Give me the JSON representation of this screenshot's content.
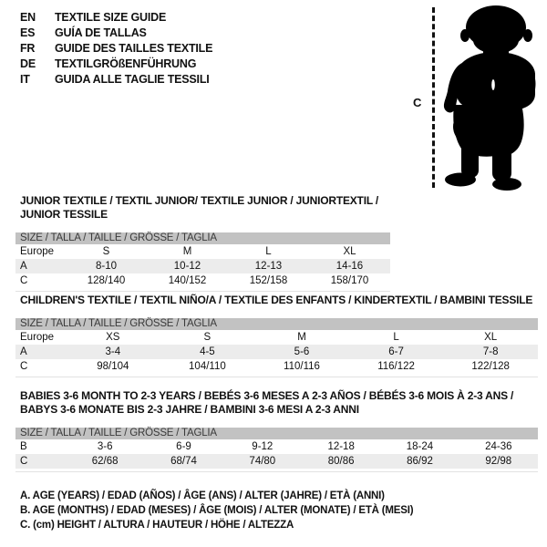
{
  "colors": {
    "bar_bg": "#c2c2c2",
    "bar_text": "#3a3a3a",
    "row_shaded_bg": "#ececec",
    "text": "#111111"
  },
  "language_header": {
    "items": [
      {
        "code": "EN",
        "title": "TEXTILE SIZE GUIDE"
      },
      {
        "code": "ES",
        "title": "GUÍA DE TALLAS"
      },
      {
        "code": "FR",
        "title": "GUIDE DES TAILLES TEXTILE"
      },
      {
        "code": "DE",
        "title": "TEXTILGRÖßENFÜHRUNG"
      },
      {
        "code": "IT",
        "title": "GUIDA ALLE TAGLIE TESSILI"
      }
    ]
  },
  "figure": {
    "icon": "toddler-silhouette",
    "measure_label": "C"
  },
  "tables": [
    {
      "title": "JUNIOR TEXTILE / TEXTIL JUNIOR/ TEXTILE JUNIOR / JUNIORTEXTIL / JUNIOR TESSILE",
      "size_header": "SIZE / TALLA / TAILLE / GRÖSSE / TAGLIA",
      "rows": [
        {
          "label": "Europe",
          "shaded": false,
          "cells": [
            "S",
            "M",
            "L",
            "XL"
          ]
        },
        {
          "label": "A",
          "shaded": true,
          "cells": [
            "8-10",
            "10-12",
            "12-13",
            "14-16"
          ]
        },
        {
          "label": "C",
          "shaded": false,
          "cells": [
            "128/140",
            "140/152",
            "152/158",
            "158/170"
          ]
        }
      ]
    },
    {
      "title": "CHILDREN'S TEXTILE / TEXTIL NIÑO/A / TEXTILE DES ENFANTS / KINDERTEXTIL / BAMBINI TESSILE",
      "size_header": "SIZE / TALLA / TAILLE / GRÖSSE / TAGLIA",
      "rows": [
        {
          "label": "Europe",
          "shaded": false,
          "cells": [
            "XS",
            "S",
            "M",
            "L",
            "XL"
          ]
        },
        {
          "label": "A",
          "shaded": true,
          "cells": [
            "3-4",
            "4-5",
            "5-6",
            "6-7",
            "7-8"
          ]
        },
        {
          "label": "C",
          "shaded": false,
          "cells": [
            "98/104",
            "104/110",
            "110/116",
            "116/122",
            "122/128"
          ]
        }
      ]
    },
    {
      "title": "BABIES 3-6 MONTH TO 2-3 YEARS / BEBÉS 3-6 MESES A 2-3 AÑOS / BÉBÉS 3-6 MOIS À 2-3 ANS /\nBABYS 3-6 MONATE BIS 2-3 JAHRE / BAMBINI 3-6 MESI A 2-3 ANNI",
      "size_header": "SIZE / TALLA / TAILLE / GRÖSSE / TAGLIA",
      "rows": [
        {
          "label": "B",
          "shaded": false,
          "cells": [
            "3-6",
            "6-9",
            "9-12",
            "12-18",
            "18-24",
            "24-36"
          ]
        },
        {
          "label": "C",
          "shaded": true,
          "cells": [
            "62/68",
            "68/74",
            "74/80",
            "80/86",
            "86/92",
            "92/98"
          ]
        }
      ]
    }
  ],
  "legend": {
    "lines": [
      "A. AGE (YEARS) / EDAD (AÑOS) / ÂGE (ANS) / ALTER (JAHRE) / ETÀ (ANNI)",
      "B. AGE (MONTHS) / EDAD (MESES) / ÂGE (MOIS) / ALTER (MONATE) / ETÀ (MESI)",
      "C. (cm) HEIGHT / ALTURA / HAUTEUR / HÖHE / ALTEZZA"
    ]
  }
}
